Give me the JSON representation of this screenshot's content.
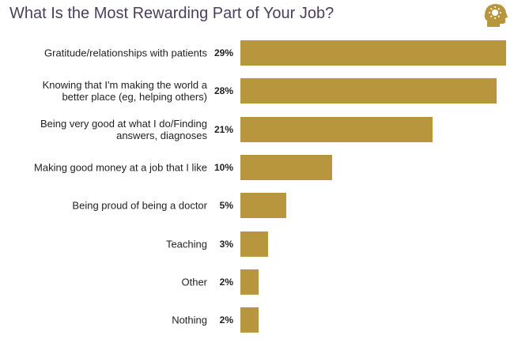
{
  "chart_data": {
    "type": "bar",
    "orientation": "horizontal",
    "title": "What Is the Most Rewarding Part of Your Job?",
    "categories": [
      "Gratitude/relationships with patients",
      "Knowing that I'm making the world a\nbetter place (eg, helping others)",
      "Being very good at what I do/Finding\nanswers, diagnoses",
      "Making good money at a job that I like",
      "Being proud of being a doctor",
      "Teaching",
      "Other",
      "Nothing"
    ],
    "values": [
      29,
      28,
      21,
      10,
      5,
      3,
      2,
      2
    ],
    "value_labels": [
      "29%",
      "28%",
      "21%",
      "10%",
      "5%",
      "3%",
      "2%",
      "2%"
    ],
    "color": "#b8963e"
  }
}
